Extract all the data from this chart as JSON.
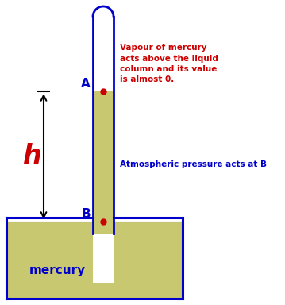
{
  "bg_color": "#ffffff",
  "mercury_color": "#c8c870",
  "tube_outline_color": "#0000cc",
  "dot_color": "#cc0000",
  "arrow_color": "#000000",
  "h_label_color": "#cc0000",
  "text_red_color": "#cc0000",
  "text_blue_color": "#0000cc",
  "figsize": [
    3.59,
    3.84
  ],
  "dpi": 100,
  "vapour_text": "Vapour of mercury\nacts above the liquid\ncolumn and its value\nis almost 0.",
  "atm_text": "Atmospheric pressure acts at B",
  "mercury_label": "mercury",
  "h_label": "h",
  "A_label": "A",
  "B_label": "B",
  "tube_lw": 2.0,
  "trough_lw": 2.2
}
